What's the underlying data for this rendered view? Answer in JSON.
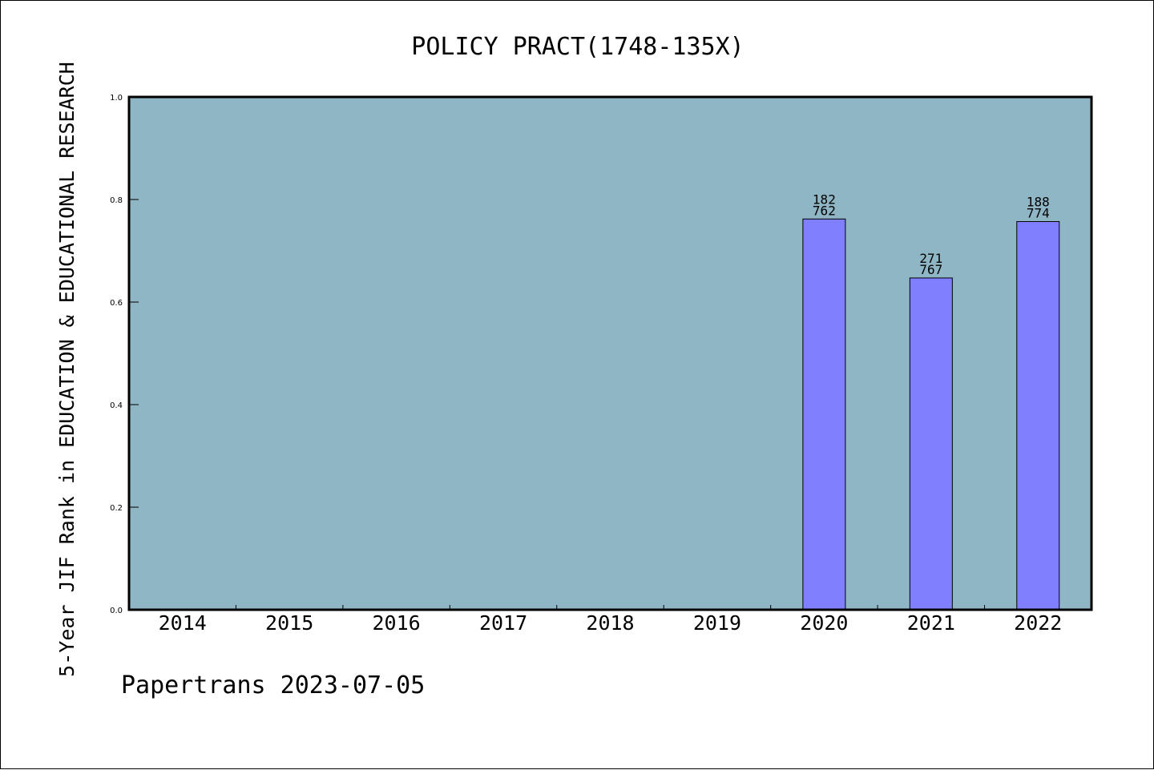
{
  "chart_data": {
    "type": "bar",
    "title": "POLICY PRACT(1748-135X)",
    "xlabel": "",
    "ylabel": "5-Year JIF Rank in EDUCATION & EDUCATIONAL RESEARCH",
    "categories": [
      "2014",
      "2015",
      "2016",
      "2017",
      "2018",
      "2019",
      "2020",
      "2021",
      "2022"
    ],
    "values": [
      null,
      null,
      null,
      null,
      null,
      null,
      0.762,
      0.647,
      0.757
    ],
    "bar_labels": [
      null,
      null,
      null,
      null,
      null,
      null,
      [
        "182",
        "762"
      ],
      [
        "271",
        "767"
      ],
      [
        "188",
        "774"
      ]
    ],
    "ylim": [
      0,
      1.0
    ],
    "yticks": [
      "0.0",
      "0.2",
      "0.4",
      "0.6",
      "0.8",
      "1.0"
    ],
    "grid": false,
    "legend": "none",
    "colors": {
      "plot_background": "#8fb6c5",
      "bar": "#8080ff",
      "axis": "#000000"
    }
  },
  "footer": {
    "note": "Papertrans 2023-07-05"
  }
}
